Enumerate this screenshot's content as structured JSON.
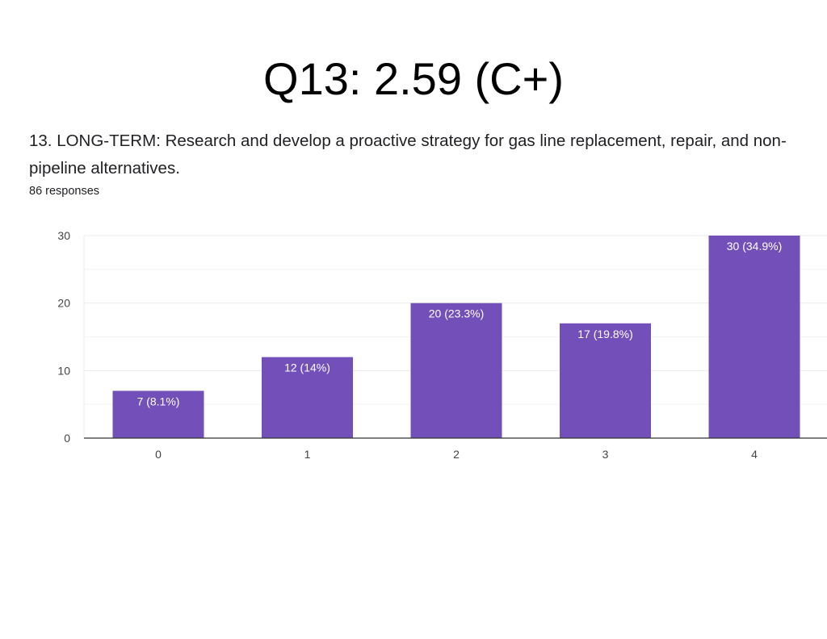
{
  "title": "Q13: 2.59 (C+)",
  "question": "13. LONG-TERM: Research and develop a proactive strategy for gas line replacement, repair, and non-pipeline alternatives.",
  "responses": "86 responses",
  "chart_data": {
    "type": "bar",
    "categories": [
      "0",
      "1",
      "2",
      "3",
      "4"
    ],
    "values": [
      7,
      12,
      20,
      17,
      30
    ],
    "data_labels": [
      "7 (8.1%)",
      "12 (14%)",
      "20 (23.3%)",
      "17 (19.8%)",
      "30 (34.9%)"
    ],
    "yticks": [
      "0",
      "10",
      "20",
      "30"
    ],
    "ylim": [
      0,
      30
    ],
    "minor_gridlines": [
      5,
      15,
      25
    ],
    "grid": true,
    "xlabel": "",
    "ylabel": "",
    "bar_color": "#7350b9"
  }
}
